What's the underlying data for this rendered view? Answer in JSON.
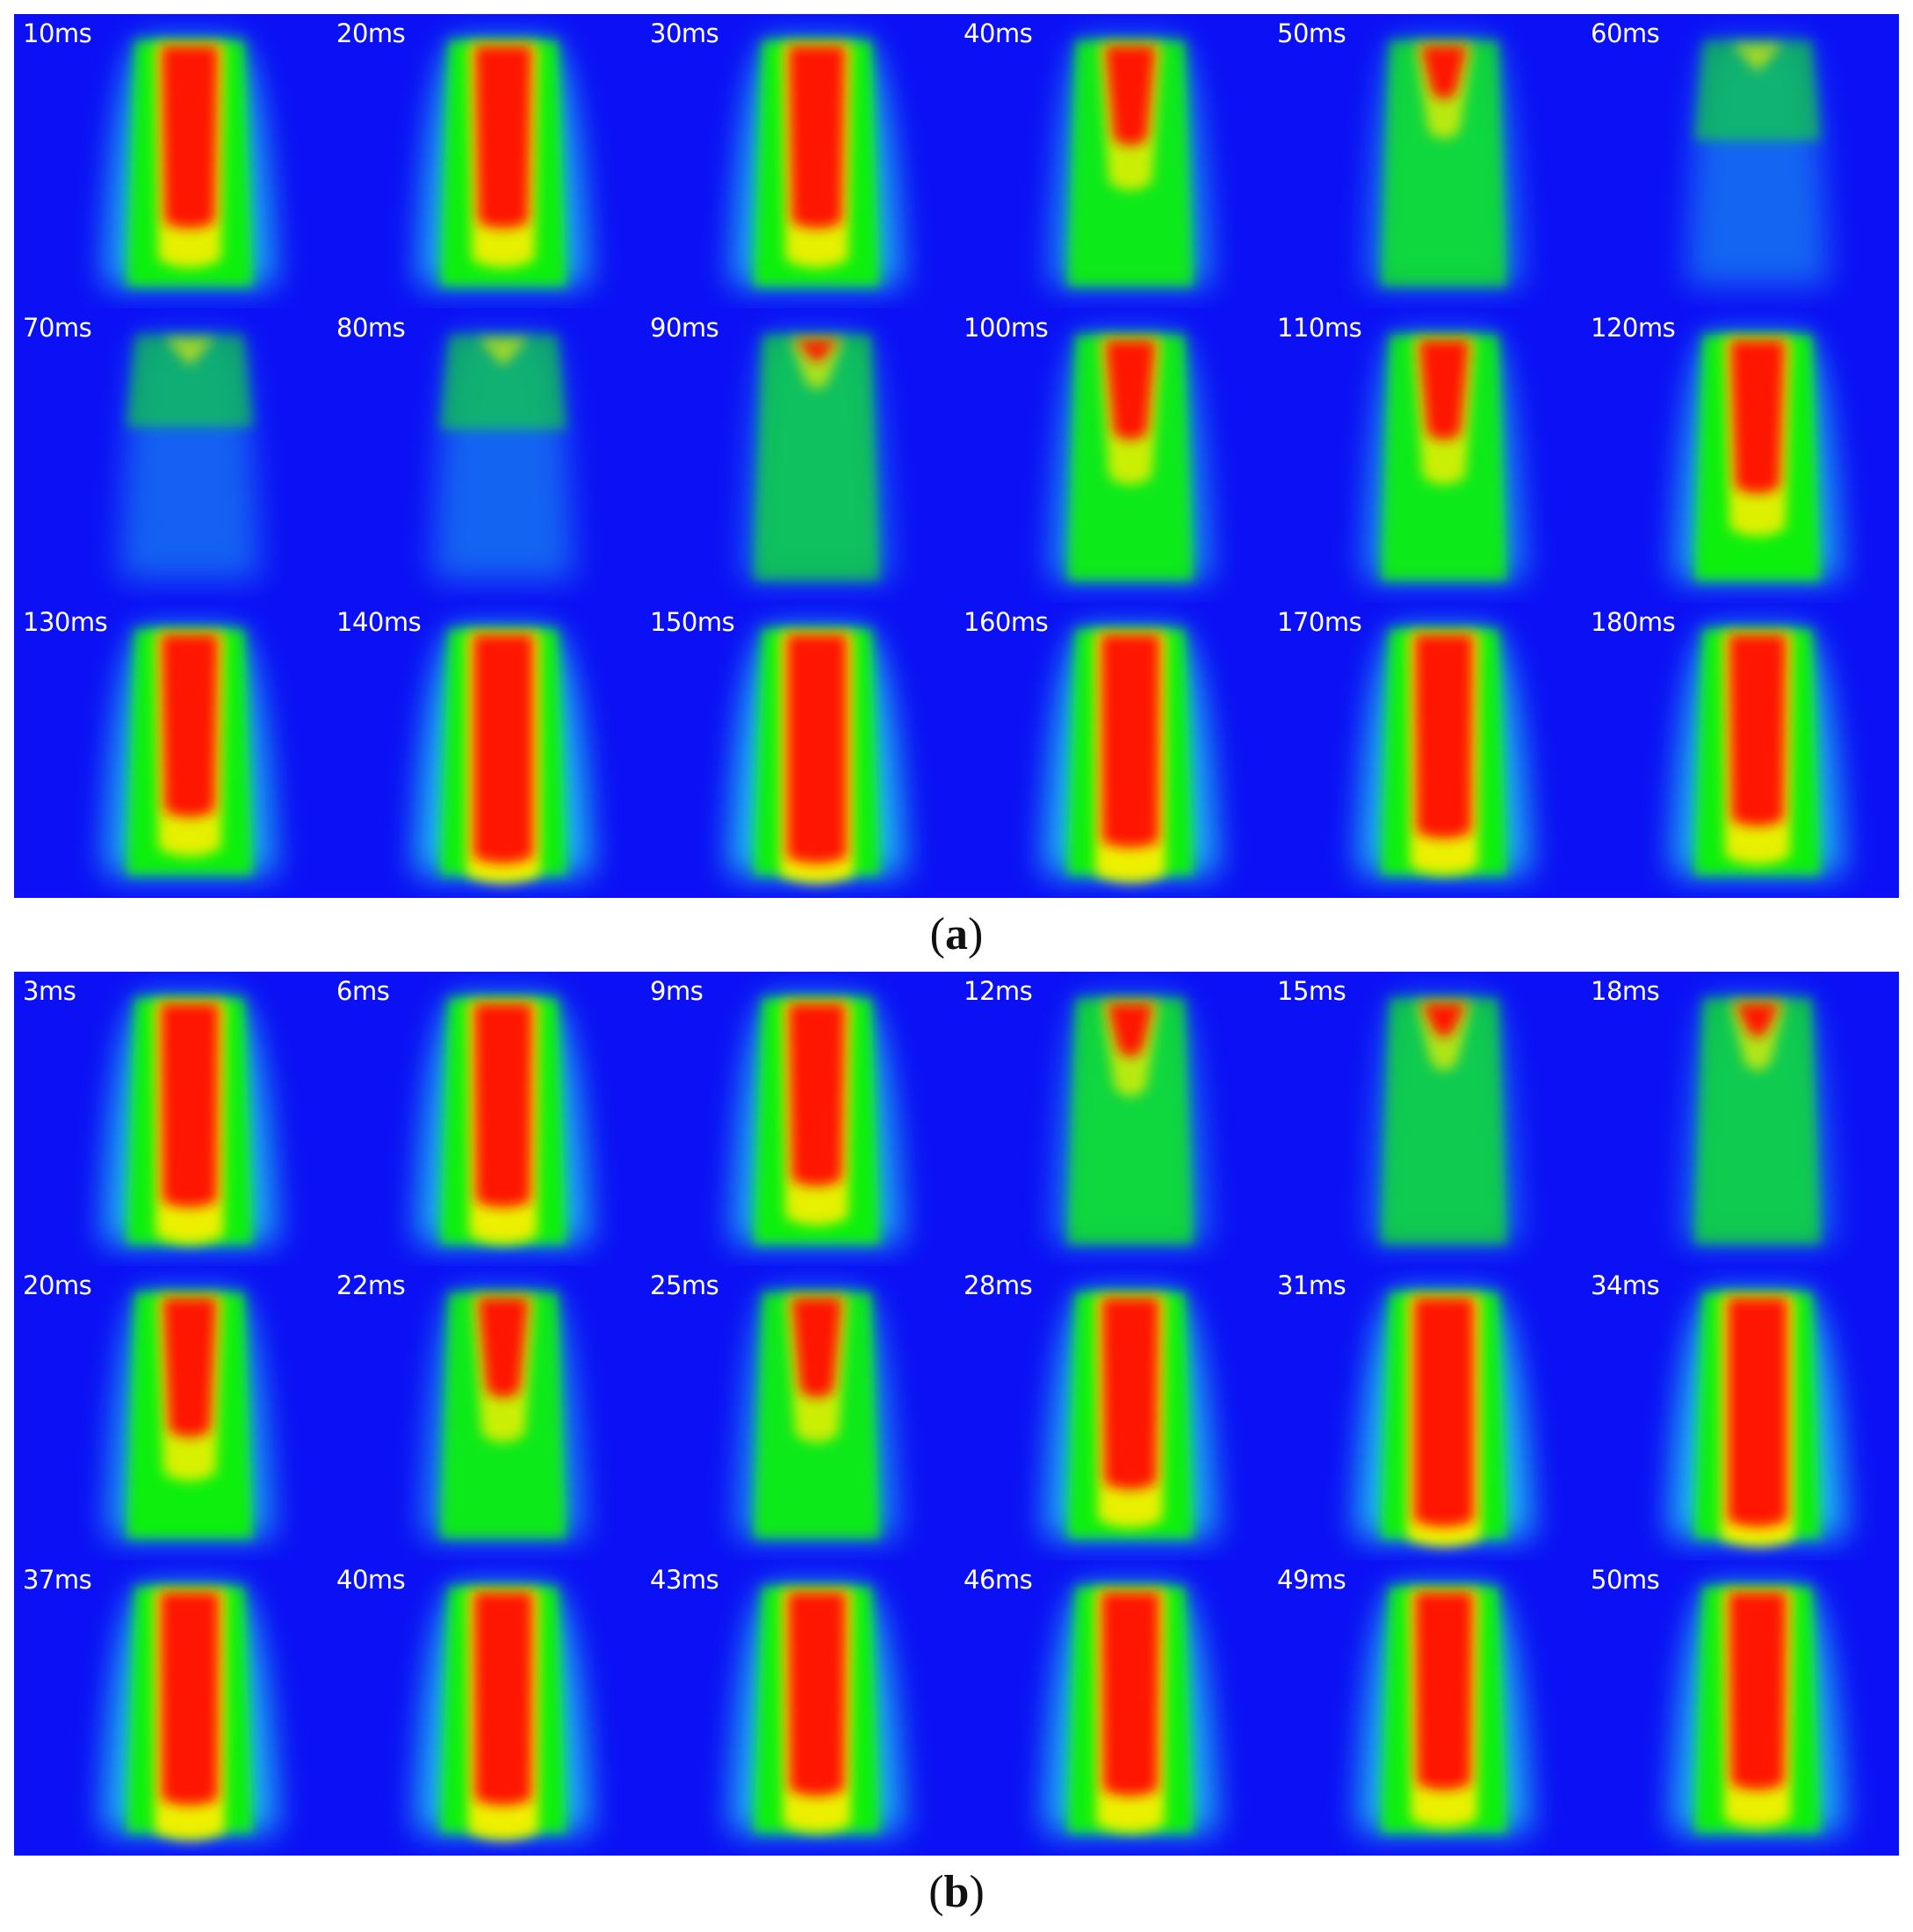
{
  "colors": {
    "background": "#0c10f4",
    "cyan": "#22ecf0",
    "green": "#0cf010",
    "yellow": "#f4f000",
    "red": "#ff1400"
  },
  "panels": [
    {
      "caption": "a",
      "frames": [
        {
          "label": "10ms",
          "intensity": 0.85
        },
        {
          "label": "20ms",
          "intensity": 0.85
        },
        {
          "label": "30ms",
          "intensity": 0.85
        },
        {
          "label": "40ms",
          "intensity": 0.55
        },
        {
          "label": "50ms",
          "intensity": 0.35
        },
        {
          "label": "60ms",
          "intensity": 0.08
        },
        {
          "label": "70ms",
          "intensity": 0.05
        },
        {
          "label": "80ms",
          "intensity": 0.06
        },
        {
          "label": "90ms",
          "intensity": 0.18
        },
        {
          "label": "100ms",
          "intensity": 0.55
        },
        {
          "label": "110ms",
          "intensity": 0.55
        },
        {
          "label": "120ms",
          "intensity": 0.75
        },
        {
          "label": "130ms",
          "intensity": 0.85
        },
        {
          "label": "140ms",
          "intensity": 1.0
        },
        {
          "label": "150ms",
          "intensity": 1.0
        },
        {
          "label": "160ms",
          "intensity": 0.95
        },
        {
          "label": "170ms",
          "intensity": 0.92
        },
        {
          "label": "180ms",
          "intensity": 0.88
        }
      ]
    },
    {
      "caption": "b",
      "frames": [
        {
          "label": "3ms",
          "intensity": 0.92
        },
        {
          "label": "6ms",
          "intensity": 0.92
        },
        {
          "label": "9ms",
          "intensity": 0.85
        },
        {
          "label": "12ms",
          "intensity": 0.35
        },
        {
          "label": "15ms",
          "intensity": 0.25
        },
        {
          "label": "18ms",
          "intensity": 0.25
        },
        {
          "label": "20ms",
          "intensity": 0.7
        },
        {
          "label": "22ms",
          "intensity": 0.55
        },
        {
          "label": "25ms",
          "intensity": 0.55
        },
        {
          "label": "28ms",
          "intensity": 0.88
        },
        {
          "label": "31ms",
          "intensity": 1.0
        },
        {
          "label": "34ms",
          "intensity": 1.0
        },
        {
          "label": "37ms",
          "intensity": 0.95
        },
        {
          "label": "40ms",
          "intensity": 0.95
        },
        {
          "label": "43ms",
          "intensity": 0.92
        },
        {
          "label": "46ms",
          "intensity": 0.92
        },
        {
          "label": "49ms",
          "intensity": 0.9
        },
        {
          "label": "50ms",
          "intensity": 0.9
        }
      ]
    }
  ]
}
